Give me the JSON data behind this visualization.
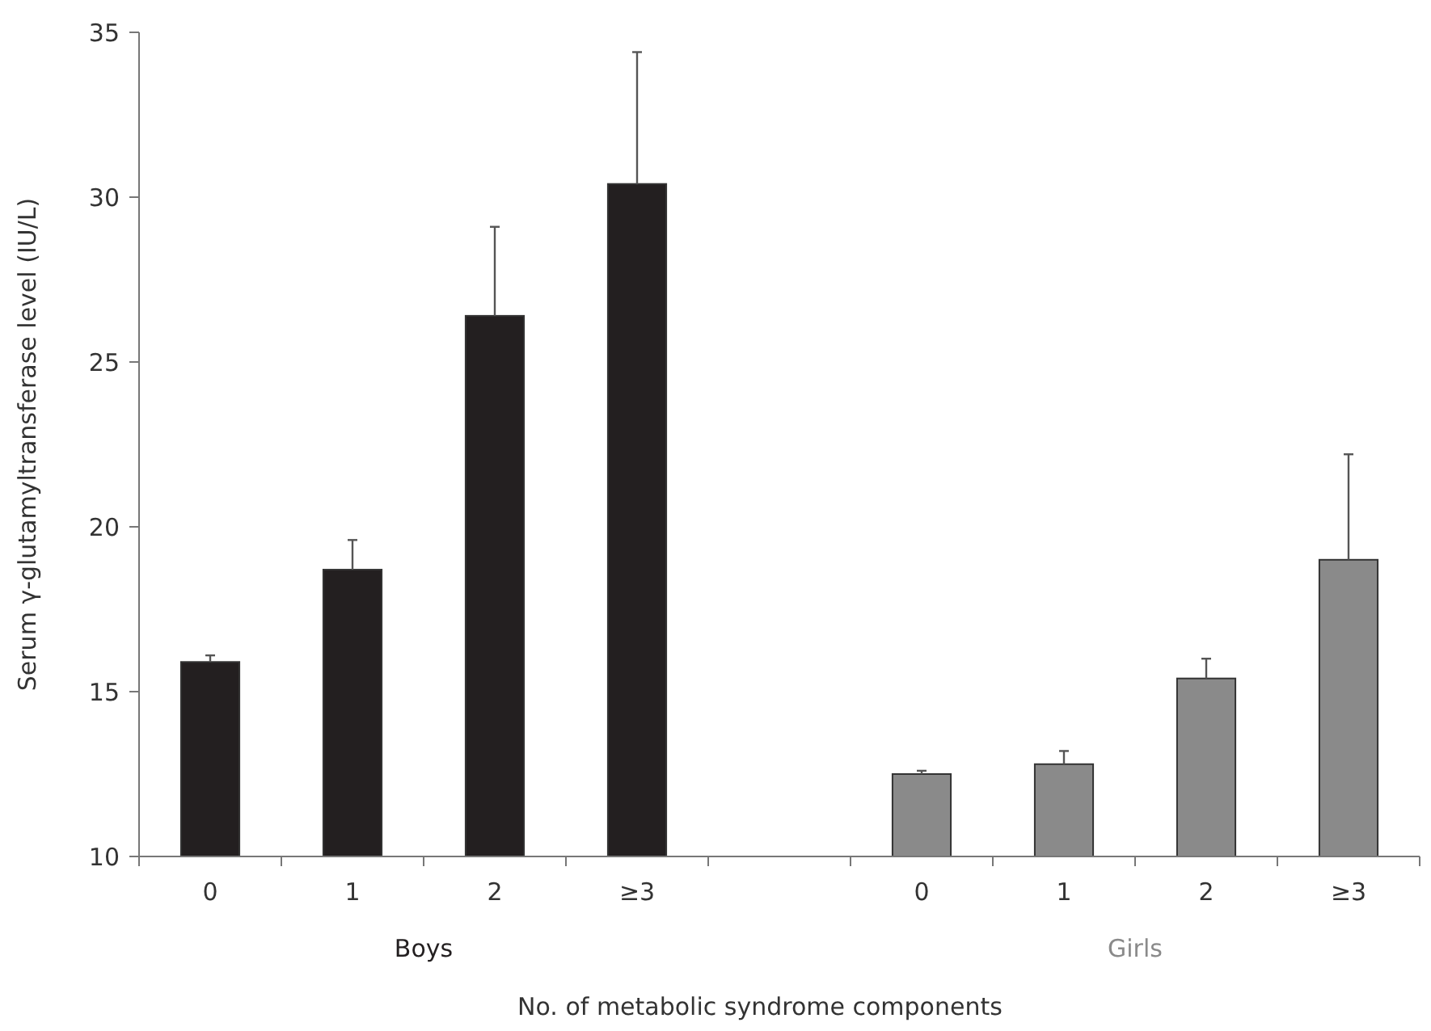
{
  "chart_data": {
    "type": "bar",
    "xlabel": "No. of metabolic syndrome components",
    "ylabel": "Serum γ-glutamyltransferase level (IU/L)",
    "categories": [
      "0",
      "1",
      "2",
      "≥3",
      null,
      "0",
      "1",
      "2",
      "≥3"
    ],
    "series": [
      {
        "name": "Boys",
        "color": "#231f20",
        "values": [
          15.9,
          18.7,
          26.4,
          30.4,
          null,
          null,
          null,
          null,
          null
        ],
        "errors": [
          [
            15.9,
            16.1
          ],
          [
            18.7,
            19.6
          ],
          [
            26.4,
            29.1
          ],
          [
            30.4,
            34.4
          ],
          null,
          null,
          null,
          null,
          null
        ]
      },
      {
        "name": "Girls",
        "color": "#8a8a8a",
        "values": [
          null,
          null,
          null,
          null,
          null,
          12.5,
          12.8,
          15.4,
          19.0
        ],
        "errors": [
          null,
          null,
          null,
          null,
          null,
          [
            12.5,
            12.6
          ],
          [
            12.8,
            13.2
          ],
          [
            15.4,
            16.0
          ],
          [
            19.0,
            22.2
          ]
        ]
      }
    ],
    "ylim": [
      10,
      35
    ],
    "yticks": [
      10,
      15,
      20,
      25,
      30,
      35
    ],
    "grid": false
  }
}
